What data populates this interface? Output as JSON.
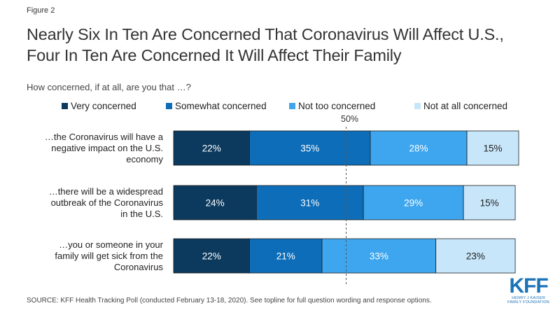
{
  "figure_label": "Figure 2",
  "title_line1": "Nearly Six In Ten Are Concerned That Coronavirus Will Affect U.S.,",
  "title_line2": "Four In Ten Are Concerned It Will Affect Their Family",
  "subtitle": "How concerned, if at all, are you that …?",
  "marker_label": "50%",
  "source": "SOURCE: KFF Health Tracking Poll (conducted February 13-18, 2020). See topline for full question wording and response options.",
  "logo": {
    "mark": "KFF",
    "line1": "HENRY J KAISER",
    "line2": "FAMILY FOUNDATION"
  },
  "colors": {
    "very": "#0b3a5e",
    "somewhat": "#0d6db8",
    "not_too": "#3ea6ee",
    "not_at_all": "#c8e6fa"
  },
  "chart_data": {
    "type": "bar",
    "orientation": "horizontal",
    "stacked": true,
    "xlim": [
      0,
      100
    ],
    "reference_line": 50,
    "categories": [
      [
        "…the Coronavirus will have a",
        "negative impact on the U.S.",
        "economy"
      ],
      [
        "…there will be a widespread",
        "outbreak of the Coronavirus",
        "in the U.S."
      ],
      [
        "…you or someone in your",
        "family will get sick from the",
        "Coronavirus"
      ]
    ],
    "series": [
      {
        "name": "Very concerned",
        "values": [
          22,
          24,
          22
        ],
        "labels": [
          "22%",
          "24%",
          "22%"
        ]
      },
      {
        "name": "Somewhat concerned",
        "values": [
          35,
          31,
          21
        ],
        "labels": [
          "35%",
          "31%",
          "21%"
        ]
      },
      {
        "name": "Not too concerned",
        "values": [
          28,
          29,
          33
        ],
        "labels": [
          "28%",
          "29%",
          "33%"
        ]
      },
      {
        "name": "Not at all concerned",
        "values": [
          15,
          15,
          23
        ],
        "labels": [
          "15%",
          "15%",
          "23%"
        ]
      }
    ],
    "legend": "top"
  }
}
